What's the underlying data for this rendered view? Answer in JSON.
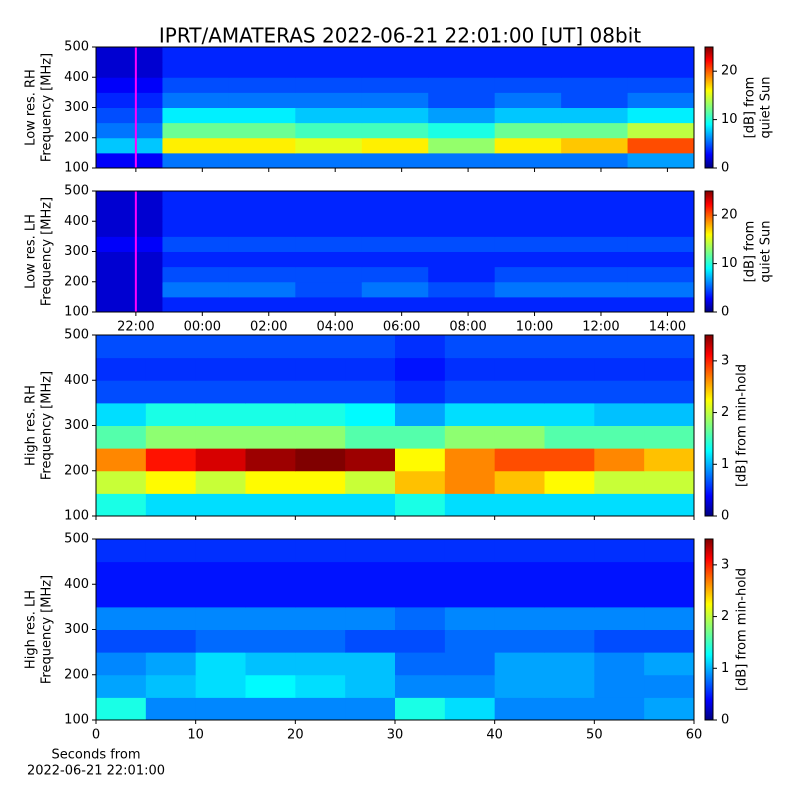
{
  "chart_data": [
    {
      "type": "heatmap",
      "title": "IPRT/AMATERAS 2022-06-21 22:01:00 [UT]   08bit",
      "ylabel": [
        "Low res. RH",
        "Frequency [MHz]"
      ],
      "colorbar_label": [
        "[dB] from",
        "quiet Sun"
      ],
      "colormap": "jet",
      "clim": [
        0,
        25
      ],
      "cticks": [
        0,
        10,
        20
      ],
      "xlim": [
        20.8,
        38.8
      ],
      "xticks": [
        22,
        24,
        26,
        28,
        30,
        32,
        34,
        36,
        38
      ],
      "ylim": [
        100,
        500
      ],
      "yticks": [
        100,
        200,
        300,
        400,
        500
      ],
      "marker_x": 22,
      "marker_color": "#ff00ff",
      "x_edges": [
        20.8,
        22.8,
        24.8,
        26.8,
        28.8,
        30.8,
        32.8,
        34.8,
        36.8,
        38.8
      ],
      "y_edges": [
        100,
        150,
        200,
        250,
        300,
        350,
        400,
        450,
        500
      ],
      "z": [
        [
          3,
          6,
          6,
          6,
          6,
          6,
          6,
          6,
          7
        ],
        [
          8,
          16,
          16,
          15,
          16,
          13,
          16,
          17,
          20
        ],
        [
          6,
          12,
          12,
          11,
          11,
          10,
          12,
          12,
          14
        ],
        [
          5,
          9,
          9,
          8,
          8,
          7,
          8,
          8,
          9
        ],
        [
          4,
          6,
          6,
          6,
          6,
          5,
          6,
          5,
          6
        ],
        [
          3,
          5,
          5,
          5,
          5,
          5,
          5,
          5,
          5
        ],
        [
          2,
          4,
          4,
          4,
          4,
          4,
          4,
          4,
          4
        ],
        [
          2,
          4,
          4,
          4,
          4,
          4,
          4,
          4,
          4
        ]
      ]
    },
    {
      "type": "heatmap",
      "ylabel": [
        "Low res. LH",
        "Frequency [MHz]"
      ],
      "colorbar_label": [
        "[dB] from",
        "quiet Sun"
      ],
      "colormap": "jet",
      "clim": [
        0,
        25
      ],
      "cticks": [
        0,
        10,
        20
      ],
      "xlim": [
        20.8,
        38.8
      ],
      "xticks": [
        {
          "value": 22,
          "label": "22:00"
        },
        {
          "value": 24,
          "label": "00:00"
        },
        {
          "value": 26,
          "label": "02:00"
        },
        {
          "value": 28,
          "label": "04:00"
        },
        {
          "value": 30,
          "label": "06:00"
        },
        {
          "value": 32,
          "label": "08:00"
        },
        {
          "value": 34,
          "label": "10:00"
        },
        {
          "value": 36,
          "label": "12:00"
        },
        {
          "value": 38,
          "label": "14:00"
        }
      ],
      "ylim": [
        100,
        500
      ],
      "yticks": [
        100,
        200,
        300,
        400,
        500
      ],
      "marker_x": 22,
      "marker_color": "#ff00ff",
      "x_edges": [
        20.8,
        22.8,
        24.8,
        26.8,
        28.8,
        30.8,
        32.8,
        34.8,
        36.8,
        38.8
      ],
      "y_edges": [
        100,
        150,
        200,
        250,
        300,
        350,
        400,
        450,
        500
      ],
      "z": [
        [
          2,
          4,
          4,
          4,
          4,
          4,
          4,
          4,
          4
        ],
        [
          2,
          6,
          6,
          5,
          6,
          5,
          6,
          6,
          6
        ],
        [
          2,
          5,
          5,
          5,
          5,
          4,
          5,
          5,
          5
        ],
        [
          2,
          4,
          4,
          4,
          4,
          4,
          4,
          4,
          4
        ],
        [
          3,
          5,
          5,
          5,
          5,
          5,
          5,
          5,
          5
        ],
        [
          2,
          4,
          4,
          4,
          4,
          4,
          4,
          4,
          4
        ],
        [
          2,
          4,
          4,
          4,
          4,
          4,
          4,
          4,
          4
        ],
        [
          2,
          4,
          4,
          4,
          4,
          4,
          4,
          4,
          4
        ]
      ]
    },
    {
      "type": "heatmap",
      "ylabel": [
        "High res. RH",
        "Frequency [MHz]"
      ],
      "colorbar_label": [
        "[dB] from min-hold"
      ],
      "colormap": "jet",
      "clim": [
        0,
        3.5
      ],
      "cticks": [
        0,
        1,
        2,
        3
      ],
      "xlim": [
        0,
        60
      ],
      "xticks": [
        0,
        10,
        20,
        30,
        40,
        50,
        60
      ],
      "ylim": [
        100,
        500
      ],
      "yticks": [
        100,
        200,
        300,
        400,
        500
      ],
      "x_edges": [
        0,
        5,
        10,
        15,
        20,
        25,
        30,
        35,
        40,
        45,
        50,
        55,
        60
      ],
      "y_edges": [
        100,
        150,
        200,
        250,
        300,
        350,
        400,
        450,
        500
      ],
      "z": [
        [
          1.4,
          1.2,
          1.2,
          1.2,
          1.2,
          1.2,
          1.4,
          1.2,
          1.2,
          1.2,
          1.2,
          1.2
        ],
        [
          2.0,
          2.2,
          2.0,
          2.2,
          2.2,
          2.0,
          2.4,
          2.6,
          2.4,
          2.2,
          2.0,
          2.0
        ],
        [
          2.6,
          3.0,
          3.2,
          3.4,
          3.5,
          3.4,
          2.2,
          2.6,
          2.8,
          2.8,
          2.6,
          2.4
        ],
        [
          1.6,
          1.8,
          1.8,
          1.8,
          1.8,
          1.6,
          1.6,
          1.8,
          1.8,
          1.6,
          1.6,
          1.6
        ],
        [
          1.2,
          1.4,
          1.4,
          1.4,
          1.4,
          1.3,
          1.0,
          1.2,
          1.2,
          1.2,
          1.1,
          1.1
        ],
        [
          0.7,
          0.7,
          0.7,
          0.7,
          0.7,
          0.7,
          0.6,
          0.7,
          0.7,
          0.7,
          0.7,
          0.7
        ],
        [
          0.6,
          0.6,
          0.6,
          0.6,
          0.6,
          0.6,
          0.5,
          0.6,
          0.6,
          0.6,
          0.6,
          0.6
        ],
        [
          0.7,
          0.7,
          0.7,
          0.7,
          0.7,
          0.7,
          0.6,
          0.7,
          0.7,
          0.7,
          0.7,
          0.7
        ]
      ]
    },
    {
      "type": "heatmap",
      "ylabel": [
        "High res. LH",
        "Frequency [MHz]"
      ],
      "colorbar_label": [
        "[dB] from min-hold"
      ],
      "xlabel": [
        "Seconds from",
        "2022-06-21 22:01:00"
      ],
      "colormap": "jet",
      "clim": [
        0,
        3.5
      ],
      "cticks": [
        0,
        1,
        2,
        3
      ],
      "xlim": [
        0,
        60
      ],
      "xticks": [
        0,
        10,
        20,
        30,
        40,
        50,
        60
      ],
      "ylim": [
        100,
        500
      ],
      "yticks": [
        100,
        200,
        300,
        400,
        500
      ],
      "x_edges": [
        0,
        5,
        10,
        15,
        20,
        25,
        30,
        35,
        40,
        45,
        50,
        55,
        60
      ],
      "y_edges": [
        100,
        150,
        200,
        250,
        300,
        350,
        400,
        450,
        500
      ],
      "z": [
        [
          1.4,
          0.9,
          0.9,
          0.9,
          0.9,
          0.9,
          1.4,
          1.2,
          0.9,
          0.9,
          0.9,
          1.0
        ],
        [
          1.0,
          1.1,
          1.2,
          1.3,
          1.2,
          1.1,
          0.9,
          0.9,
          1.0,
          1.0,
          0.9,
          0.9
        ],
        [
          0.9,
          1.0,
          1.2,
          1.1,
          1.1,
          1.1,
          0.8,
          0.8,
          1.0,
          1.0,
          0.9,
          1.0
        ],
        [
          0.7,
          0.7,
          0.8,
          0.8,
          0.8,
          0.7,
          0.7,
          0.8,
          0.8,
          0.8,
          0.7,
          0.7
        ],
        [
          0.9,
          0.9,
          0.9,
          0.9,
          0.9,
          0.9,
          0.8,
          0.9,
          0.9,
          0.9,
          0.9,
          0.9
        ],
        [
          0.5,
          0.5,
          0.5,
          0.5,
          0.5,
          0.5,
          0.5,
          0.5,
          0.5,
          0.5,
          0.5,
          0.5
        ],
        [
          0.5,
          0.5,
          0.5,
          0.5,
          0.5,
          0.5,
          0.5,
          0.5,
          0.5,
          0.5,
          0.5,
          0.5
        ],
        [
          0.6,
          0.6,
          0.6,
          0.6,
          0.6,
          0.6,
          0.6,
          0.6,
          0.6,
          0.6,
          0.6,
          0.6
        ]
      ]
    }
  ]
}
